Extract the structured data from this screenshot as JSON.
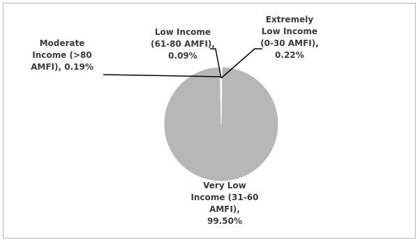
{
  "chart_data": {
    "type": "pie",
    "title": "",
    "slices": [
      {
        "name": "Extremely Low Income (0-30 AMFI)",
        "value": 0.22,
        "label_lines": [
          "Extremely",
          "Low Income",
          "(0-30 AMFI),",
          "0.22%"
        ]
      },
      {
        "name": "Very Low Income (31-60 AMFI)",
        "value": 99.5,
        "label_lines": [
          "Very Low",
          "Income (31-60",
          "AMFI),",
          "99.50%"
        ]
      },
      {
        "name": "Moderate Income (>80 AMFI)",
        "value": 0.19,
        "label_lines": [
          "Moderate",
          "Income (>80",
          "AMFI), 0.19%"
        ]
      },
      {
        "name": "Low Income (61-80 AMFI)",
        "value": 0.09,
        "label_lines": [
          "Low Income",
          "(61-80 AMFI),",
          "0.09%"
        ]
      }
    ],
    "colors": {
      "slice": "#b7b7b7",
      "slice_edge": "#ffffff",
      "leader_line": "#000000",
      "label_text": "#3a3a3a",
      "frame": "#b8b8b8"
    },
    "legend": "none"
  }
}
